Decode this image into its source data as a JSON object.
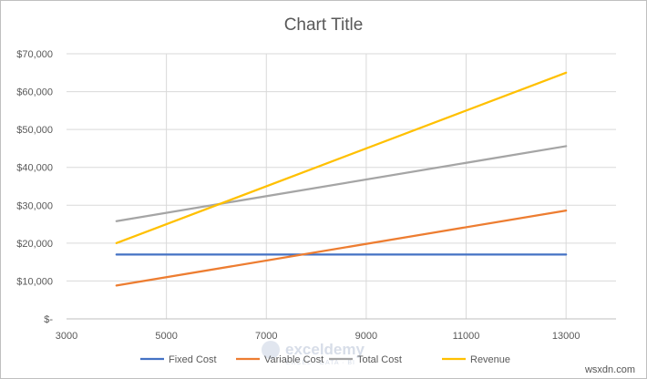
{
  "chart_data": {
    "type": "line",
    "title": "Chart Title",
    "x": [
      4000,
      13000
    ],
    "xlim": [
      3000,
      14000
    ],
    "x_ticks": [
      3000,
      5000,
      7000,
      9000,
      11000,
      13000
    ],
    "x_tick_labels": [
      "3000",
      "5000",
      "7000",
      "9000",
      "11000",
      "13000"
    ],
    "ylim": [
      0,
      70000
    ],
    "y_ticks": [
      0,
      10000,
      20000,
      30000,
      40000,
      50000,
      60000,
      70000
    ],
    "y_tick_labels": [
      "$-",
      "$10,000",
      "$20,000",
      "$30,000",
      "$40,000",
      "$50,000",
      "$60,000",
      "$70,000"
    ],
    "grid": true,
    "legend_position": "bottom",
    "series": [
      {
        "name": "Fixed Cost",
        "color": "#4472c4",
        "values": [
          17000,
          17000
        ]
      },
      {
        "name": "Variable Cost",
        "color": "#ed7d31",
        "values": [
          8800,
          28600
        ]
      },
      {
        "name": "Total Cost",
        "color": "#a5a5a5",
        "values": [
          25800,
          45600
        ]
      },
      {
        "name": "Revenue",
        "color": "#ffc000",
        "values": [
          20000,
          65000
        ]
      }
    ]
  },
  "watermark": {
    "brand": "exceldemy",
    "tagline": "EXCEL · DATA · BI"
  },
  "site_credit": "wsxdn.com"
}
